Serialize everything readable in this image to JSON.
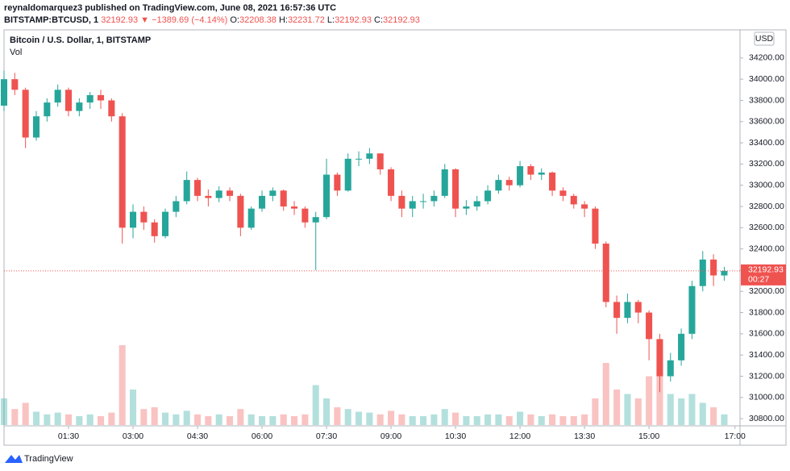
{
  "chart_data": {
    "type": "candlestick",
    "author_line": "reynaldomarquez3 published on TradingView.com, June 08, 2021 16:57:36 UTC",
    "symbol": "BITSTAMP:BTCUSD, 1",
    "last_header": 32192.93,
    "change": "▼ −1389.69 (−4.14%)",
    "ohlc_labels": [
      "O:",
      "H:",
      "L:",
      "C:"
    ],
    "ohlc_values": [
      32208.38,
      32231.72,
      32192.93,
      32192.93
    ],
    "title": "Bitcoin / U.S. Dollar, 1, BITSTAMP",
    "volume_label": "Vol",
    "currency": "USD",
    "last_price": 32192.93,
    "countdown": "00:27",
    "brand": "TradingView",
    "up_color": "#26a69a",
    "down_color": "#ef5350",
    "xlim": [
      "00:00",
      "17:07"
    ],
    "xticks": [
      "01:30",
      "03:00",
      "04:30",
      "06:00",
      "07:30",
      "09:00",
      "10:30",
      "12:00",
      "13:30",
      "15:00",
      "17:00"
    ],
    "ylim": [
      30740,
      34465
    ],
    "yticks": [
      {
        "value": 30800,
        "label": "30800.00"
      },
      {
        "value": 31000,
        "label": "31000.00"
      },
      {
        "value": 31200,
        "label": "31200.00"
      },
      {
        "value": 31400,
        "label": "31400.00"
      },
      {
        "value": 31600,
        "label": "31600.00"
      },
      {
        "value": 31800,
        "label": "31800.00"
      },
      {
        "value": 32000,
        "label": "32000.00"
      },
      {
        "value": 32200,
        "label": "32200.00"
      },
      {
        "value": 32400,
        "label": "32400.00"
      },
      {
        "value": 32600,
        "label": "32600.00"
      },
      {
        "value": 32800,
        "label": "32800.00"
      },
      {
        "value": 33000,
        "label": "33000.00"
      },
      {
        "value": 33200,
        "label": "33200.00"
      },
      {
        "value": 33400,
        "label": "33400.00"
      },
      {
        "value": 33600,
        "label": "33600.00"
      },
      {
        "value": 33800,
        "label": "33800.00"
      },
      {
        "value": 34000,
        "label": "34000.00"
      },
      {
        "value": 34200,
        "label": "34200.00"
      }
    ],
    "y2lim": [
      0,
      100
    ],
    "x": [
      "00:00",
      "00:15",
      "00:30",
      "00:45",
      "01:00",
      "01:15",
      "01:30",
      "01:45",
      "02:00",
      "02:15",
      "02:30",
      "02:45",
      "03:00",
      "03:15",
      "03:30",
      "03:45",
      "04:00",
      "04:15",
      "04:30",
      "04:45",
      "05:00",
      "05:15",
      "05:30",
      "05:45",
      "06:00",
      "06:15",
      "06:30",
      "06:45",
      "07:00",
      "07:15",
      "07:30",
      "07:45",
      "08:00",
      "08:15",
      "08:30",
      "08:45",
      "09:00",
      "09:15",
      "09:30",
      "09:45",
      "10:00",
      "10:15",
      "10:30",
      "10:45",
      "11:00",
      "11:15",
      "11:30",
      "11:45",
      "12:00",
      "12:15",
      "12:30",
      "12:45",
      "13:00",
      "13:15",
      "13:30",
      "13:45",
      "14:00",
      "14:15",
      "14:30",
      "14:45",
      "15:00",
      "15:15",
      "15:30",
      "15:45",
      "16:00",
      "16:15",
      "16:30",
      "16:45"
    ],
    "open": [
      33750,
      34000,
      33900,
      33450,
      33650,
      33780,
      33900,
      33700,
      33780,
      33850,
      33800,
      33650,
      32600,
      32750,
      32650,
      32520,
      32750,
      32850,
      33050,
      32900,
      32880,
      32950,
      32900,
      32600,
      32780,
      32900,
      32950,
      32800,
      32780,
      32650,
      32700,
      33100,
      32950,
      33250,
      33250,
      33300,
      33150,
      32900,
      32780,
      32850,
      32850,
      32900,
      33150,
      32780,
      32800,
      32850,
      32950,
      33050,
      33000,
      33180,
      33100,
      33120,
      32950,
      32900,
      32820,
      32780,
      32450,
      31900,
      31750,
      31900,
      31800,
      31550,
      31200,
      31350,
      31600,
      32050,
      32300,
      32150
    ],
    "high": [
      34080,
      34060,
      33920,
      33700,
      33820,
      33950,
      33920,
      33820,
      33880,
      33900,
      33820,
      33680,
      32820,
      32800,
      32680,
      32780,
      32900,
      33130,
      33070,
      32960,
      32990,
      32980,
      32920,
      32800,
      32950,
      32980,
      32960,
      32850,
      32800,
      32750,
      33250,
      33120,
      33300,
      33320,
      33350,
      33300,
      33170,
      32950,
      32900,
      32920,
      32950,
      33200,
      33160,
      32860,
      32900,
      33000,
      33100,
      33080,
      33230,
      33200,
      33160,
      33130,
      32980,
      32920,
      32850,
      32800,
      32470,
      31960,
      31980,
      31920,
      31820,
      31600,
      31420,
      31650,
      32100,
      32380,
      32350,
      32231.72
    ],
    "low": [
      33700,
      33850,
      33350,
      33420,
      33600,
      33740,
      33650,
      33650,
      33720,
      33720,
      33600,
      32450,
      32500,
      32580,
      32460,
      32500,
      32700,
      32820,
      32850,
      32800,
      32840,
      32850,
      32520,
      32580,
      32750,
      32850,
      32760,
      32720,
      32600,
      32200,
      32680,
      32900,
      32940,
      33180,
      33200,
      33100,
      32850,
      32700,
      32700,
      32780,
      32800,
      32880,
      32700,
      32720,
      32760,
      32820,
      32920,
      32950,
      32980,
      33050,
      33050,
      32900,
      32850,
      32780,
      32700,
      32400,
      31850,
      31600,
      31700,
      31700,
      31350,
      31050,
      31150,
      31300,
      31550,
      32000,
      32050,
      32100
    ],
    "close": [
      34000,
      33900,
      33450,
      33650,
      33780,
      33900,
      33700,
      33780,
      33850,
      33800,
      33650,
      32600,
      32750,
      32650,
      32520,
      32750,
      32850,
      33050,
      32900,
      32880,
      32950,
      32900,
      32600,
      32780,
      32900,
      32950,
      32800,
      32780,
      32650,
      32700,
      33100,
      32950,
      33250,
      33250,
      33300,
      33150,
      32900,
      32780,
      32850,
      32850,
      32900,
      33150,
      32780,
      32800,
      32850,
      32950,
      33050,
      33000,
      33180,
      33100,
      33120,
      32950,
      32900,
      32820,
      32780,
      32450,
      31900,
      31750,
      31900,
      31800,
      31550,
      31200,
      31350,
      31600,
      32050,
      32300,
      32150,
      32192.93
    ],
    "volume": [
      30,
      18,
      25,
      15,
      12,
      14,
      12,
      10,
      12,
      10,
      14,
      90,
      40,
      18,
      20,
      14,
      12,
      16,
      12,
      10,
      12,
      10,
      18,
      12,
      10,
      10,
      12,
      10,
      12,
      45,
      30,
      20,
      18,
      15,
      14,
      12,
      16,
      12,
      10,
      10,
      12,
      18,
      14,
      10,
      10,
      12,
      12,
      10,
      15,
      12,
      10,
      12,
      10,
      10,
      12,
      30,
      70,
      40,
      35,
      30,
      55,
      60,
      35,
      30,
      35,
      25,
      20,
      12
    ]
  }
}
